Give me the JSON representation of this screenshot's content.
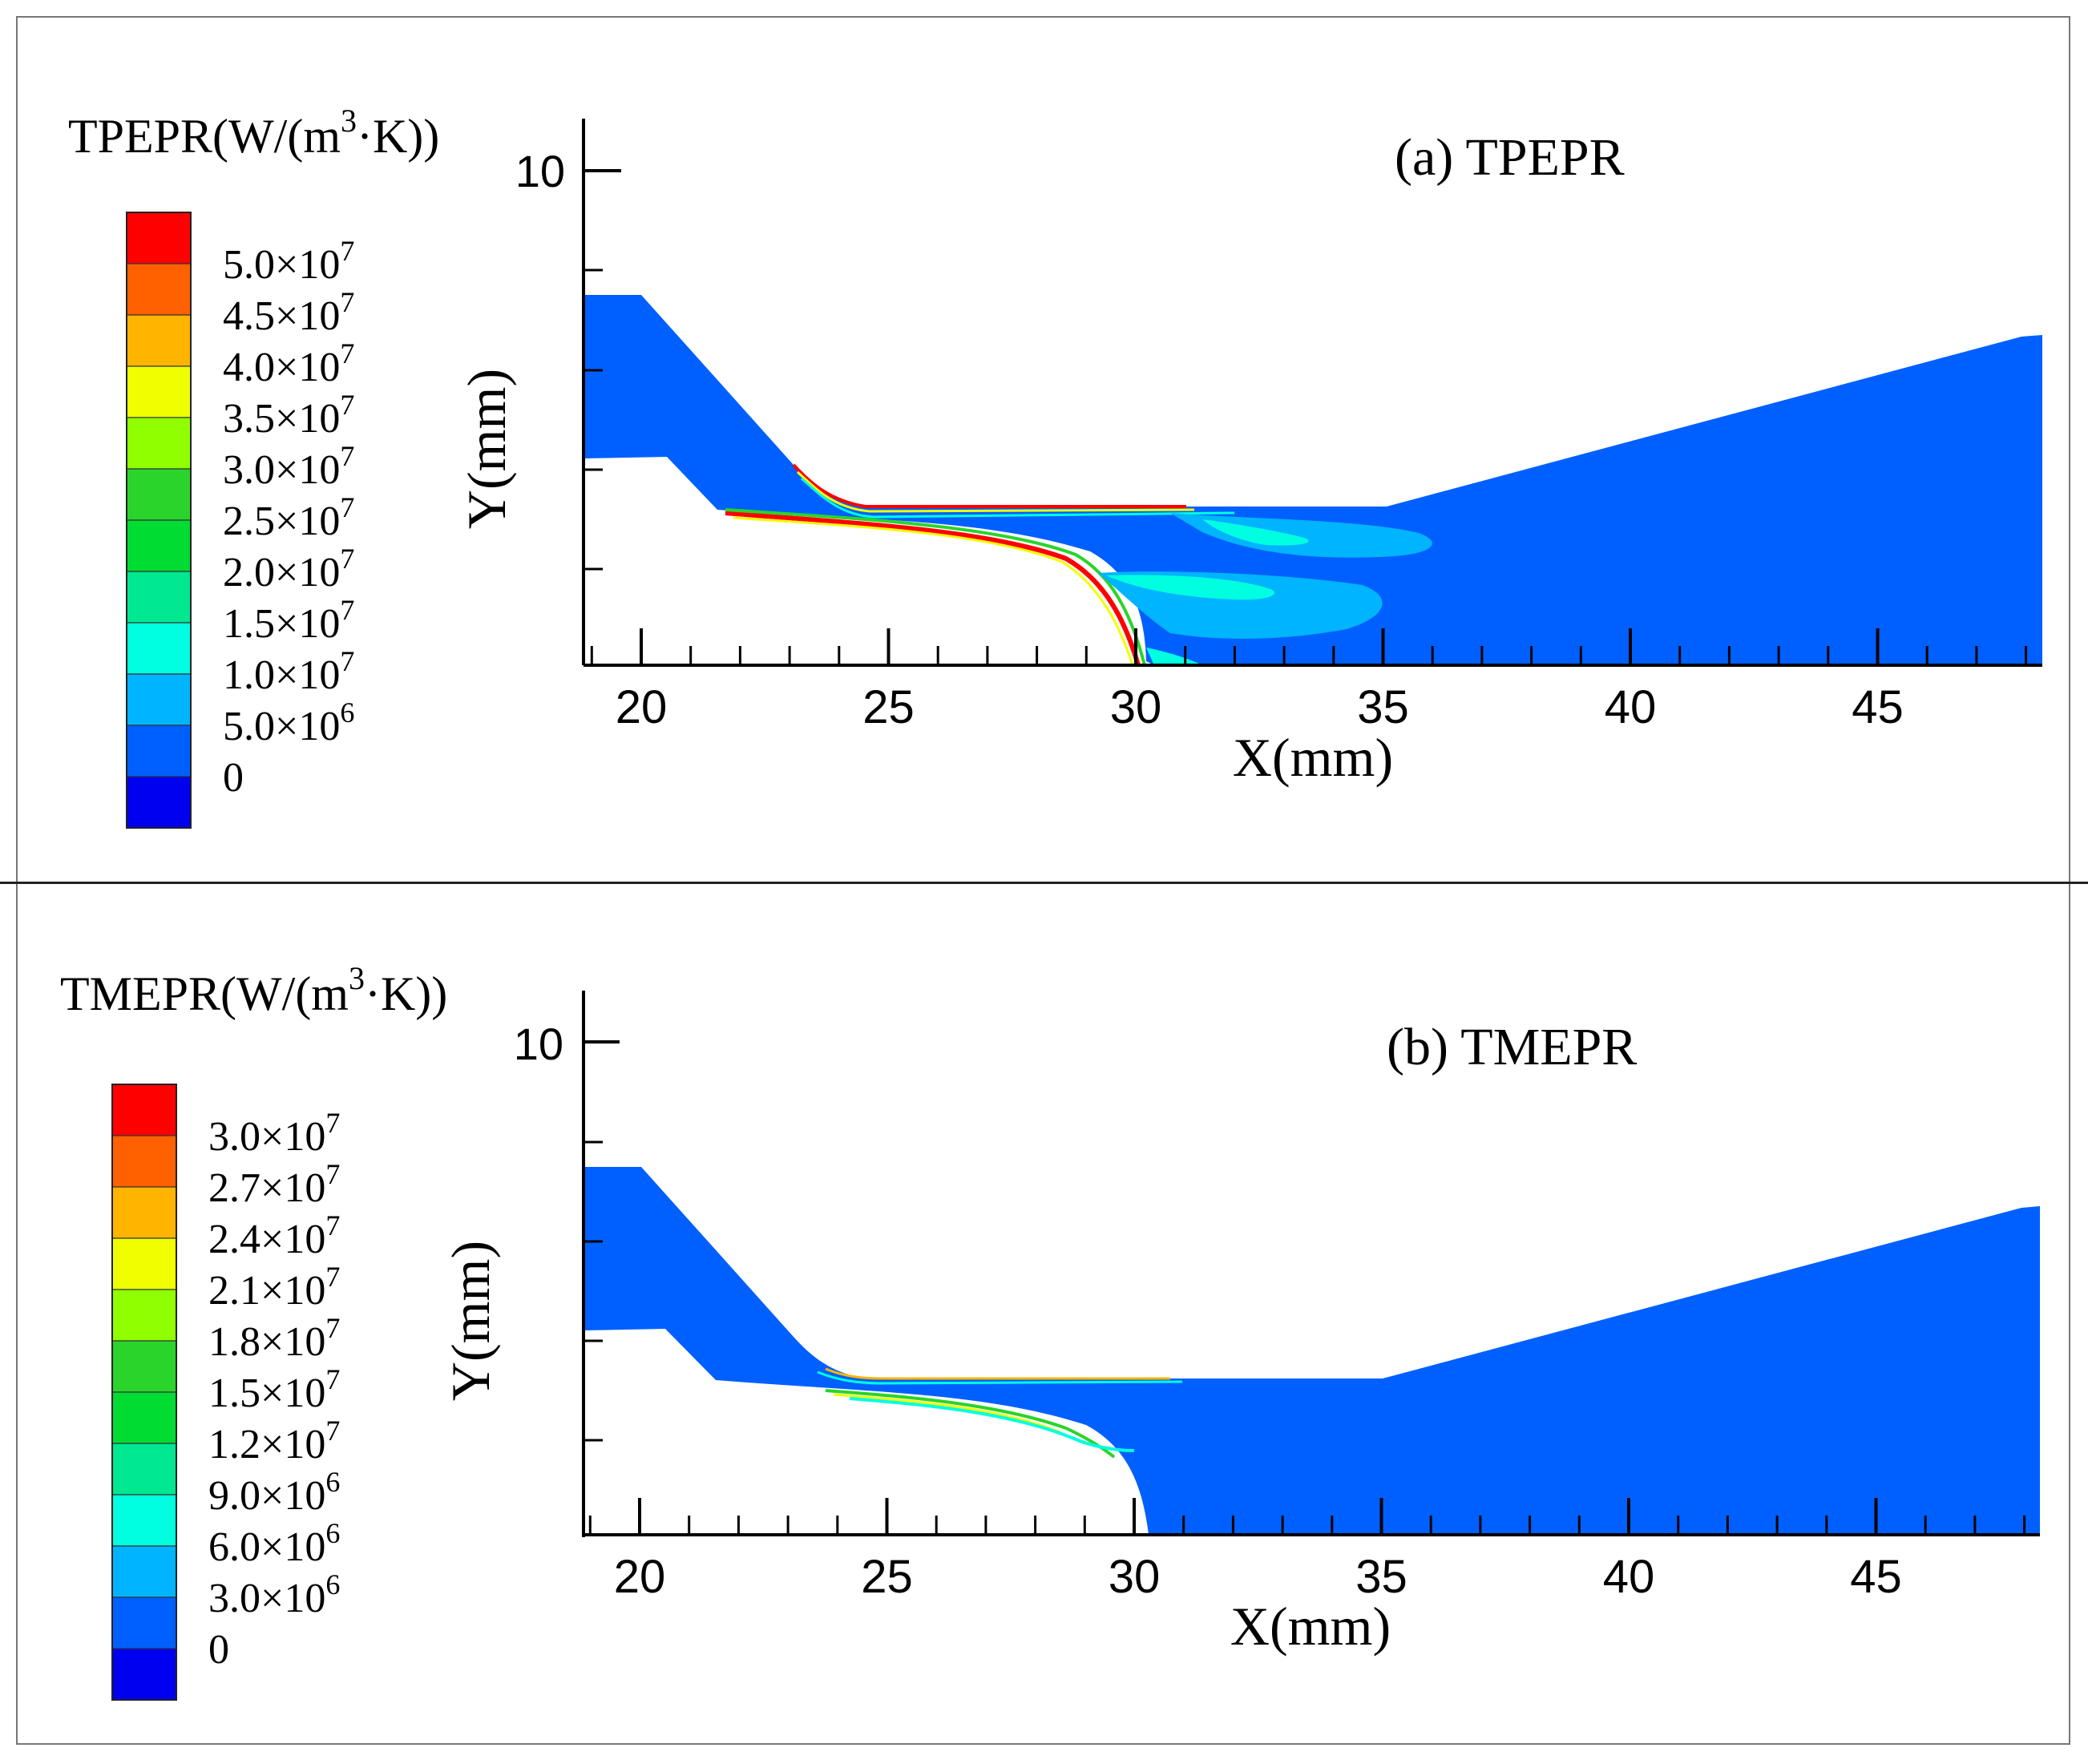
{
  "panels": [
    {
      "id": "a",
      "legend_title": "TPEPR(W/(m³·K))",
      "legend_title_main": "TPEPR(W/(m",
      "legend_title_sup": "3",
      "legend_title_end": "·K))",
      "legend_labels": [
        {
          "mantissa": "5.0×10",
          "exp": "7"
        },
        {
          "mantissa": "4.5×10",
          "exp": "7"
        },
        {
          "mantissa": "4.0×10",
          "exp": "7"
        },
        {
          "mantissa": "3.5×10",
          "exp": "7"
        },
        {
          "mantissa": "3.0×10",
          "exp": "7"
        },
        {
          "mantissa": "2.5×10",
          "exp": "7"
        },
        {
          "mantissa": "2.0×10",
          "exp": "7"
        },
        {
          "mantissa": "1.5×10",
          "exp": "7"
        },
        {
          "mantissa": "1.0×10",
          "exp": "7"
        },
        {
          "mantissa": "5.0×10",
          "exp": "6"
        },
        {
          "mantissa": "0",
          "exp": ""
        }
      ],
      "annotation": "(a) TPEPR",
      "xlabel": "X(mm)",
      "ylabel": "Y(mm)",
      "xticks": [
        "20",
        "25",
        "30",
        "35",
        "40",
        "45"
      ],
      "ytick_label": "10"
    },
    {
      "id": "b",
      "legend_title": "TMEPR(W/(m³·K))",
      "legend_title_main": "TMEPR(W/(m",
      "legend_title_sup": "3",
      "legend_title_end": "·K))",
      "legend_labels": [
        {
          "mantissa": "3.0×10",
          "exp": "7"
        },
        {
          "mantissa": "2.7×10",
          "exp": "7"
        },
        {
          "mantissa": "2.4×10",
          "exp": "7"
        },
        {
          "mantissa": "2.1×10",
          "exp": "7"
        },
        {
          "mantissa": "1.8×10",
          "exp": "7"
        },
        {
          "mantissa": "1.5×10",
          "exp": "7"
        },
        {
          "mantissa": "1.2×10",
          "exp": "7"
        },
        {
          "mantissa": "9.0×10",
          "exp": "6"
        },
        {
          "mantissa": "6.0×10",
          "exp": "6"
        },
        {
          "mantissa": "3.0×10",
          "exp": "6"
        },
        {
          "mantissa": "0",
          "exp": ""
        }
      ],
      "annotation": "(b) TMEPR",
      "xlabel": "X(mm)",
      "ylabel": "Y(mm)",
      "xticks": [
        "20",
        "25",
        "30",
        "35",
        "40",
        "45"
      ],
      "ytick_label": "10"
    }
  ],
  "colormap": [
    "#0000f0",
    "#0060ff",
    "#00b4ff",
    "#00ffe0",
    "#00e890",
    "#00dc32",
    "#2ad42a",
    "#90ff00",
    "#f0ff00",
    "#ffb400",
    "#ff6000",
    "#ff0000"
  ],
  "chart_data": [
    {
      "type": "heatmap",
      "title": "(a) TPEPR",
      "quantity": "TPEPR",
      "units": "W/(m³·K)",
      "xlabel": "X(mm)",
      "ylabel": "Y(mm)",
      "xlim": [
        18.8,
        48.3
      ],
      "ylim": [
        0,
        11
      ],
      "xticks": [
        20,
        25,
        30,
        35,
        40,
        45
      ],
      "yticks_labeled": [
        10
      ],
      "colorbar_levels": [
        0,
        5000000,
        10000000,
        15000000,
        20000000,
        25000000,
        30000000,
        35000000,
        40000000,
        45000000,
        50000000
      ],
      "dominant_value": "0 to 5.0×10⁶",
      "notes": "High values (up to 5.0×10⁷) concentrated in thin shear layers along nozzle surfaces; elevated 1.0–1.5×10⁷ regions downstream near X=31–36 mm"
    },
    {
      "type": "heatmap",
      "title": "(b) TMEPR",
      "quantity": "TMEPR",
      "units": "W/(m³·K)",
      "xlabel": "X(mm)",
      "ylabel": "Y(mm)",
      "xlim": [
        18.8,
        48.3
      ],
      "ylim": [
        0,
        11
      ],
      "xticks": [
        20,
        25,
        30,
        35,
        40,
        45
      ],
      "yticks_labeled": [
        10
      ],
      "colorbar_levels": [
        0,
        3000000,
        6000000,
        9000000,
        12000000,
        15000000,
        18000000,
        21000000,
        24000000,
        27000000,
        30000000
      ],
      "dominant_value": "0 to 3.0×10⁶",
      "notes": "Elevated values only in thin layers along nozzle walls near X=24–30 mm"
    }
  ]
}
